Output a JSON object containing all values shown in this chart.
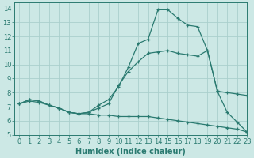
{
  "background_color": "#cce8e5",
  "grid_color": "#aacfcc",
  "line_color": "#2a7a70",
  "xlabel": "Humidex (Indice chaleur)",
  "xlim": [
    -0.5,
    23
  ],
  "ylim": [
    5,
    14.4
  ],
  "xticks": [
    0,
    1,
    2,
    3,
    4,
    5,
    6,
    7,
    8,
    9,
    10,
    11,
    12,
    13,
    14,
    15,
    16,
    17,
    18,
    19,
    20,
    21,
    22,
    23
  ],
  "yticks": [
    5,
    6,
    7,
    8,
    9,
    10,
    11,
    12,
    13,
    14
  ],
  "line1_x": [
    0,
    1,
    2,
    3,
    4,
    5,
    6,
    7,
    8,
    9,
    10,
    11,
    12,
    13,
    14,
    15,
    16,
    17,
    18,
    19,
    20,
    21,
    22,
    23
  ],
  "line1_y": [
    7.2,
    7.5,
    7.4,
    7.1,
    6.9,
    6.6,
    6.5,
    6.6,
    7.1,
    7.5,
    8.4,
    9.8,
    11.5,
    11.8,
    13.9,
    13.9,
    13.3,
    12.8,
    12.7,
    11.0,
    8.1,
    6.6,
    5.9,
    5.2
  ],
  "line2_x": [
    0,
    1,
    2,
    3,
    4,
    5,
    6,
    7,
    8,
    9,
    10,
    11,
    12,
    13,
    14,
    15,
    16,
    17,
    18,
    19,
    20,
    21,
    22,
    23
  ],
  "line2_y": [
    7.2,
    7.5,
    7.4,
    7.1,
    6.9,
    6.6,
    6.5,
    6.6,
    6.9,
    7.2,
    8.5,
    9.5,
    10.2,
    10.8,
    10.9,
    11.0,
    10.8,
    10.7,
    10.6,
    11.0,
    8.1,
    8.0,
    7.9,
    7.8
  ],
  "line3_x": [
    0,
    1,
    2,
    3,
    4,
    5,
    6,
    7,
    8,
    9,
    10,
    11,
    12,
    13,
    14,
    15,
    16,
    17,
    18,
    19,
    20,
    21,
    22,
    23
  ],
  "line3_y": [
    7.2,
    7.4,
    7.3,
    7.1,
    6.9,
    6.6,
    6.5,
    6.5,
    6.4,
    6.4,
    6.3,
    6.3,
    6.3,
    6.3,
    6.2,
    6.1,
    6.0,
    5.9,
    5.8,
    5.7,
    5.6,
    5.5,
    5.4,
    5.2
  ],
  "label_fontsize": 7,
  "tick_fontsize": 6
}
